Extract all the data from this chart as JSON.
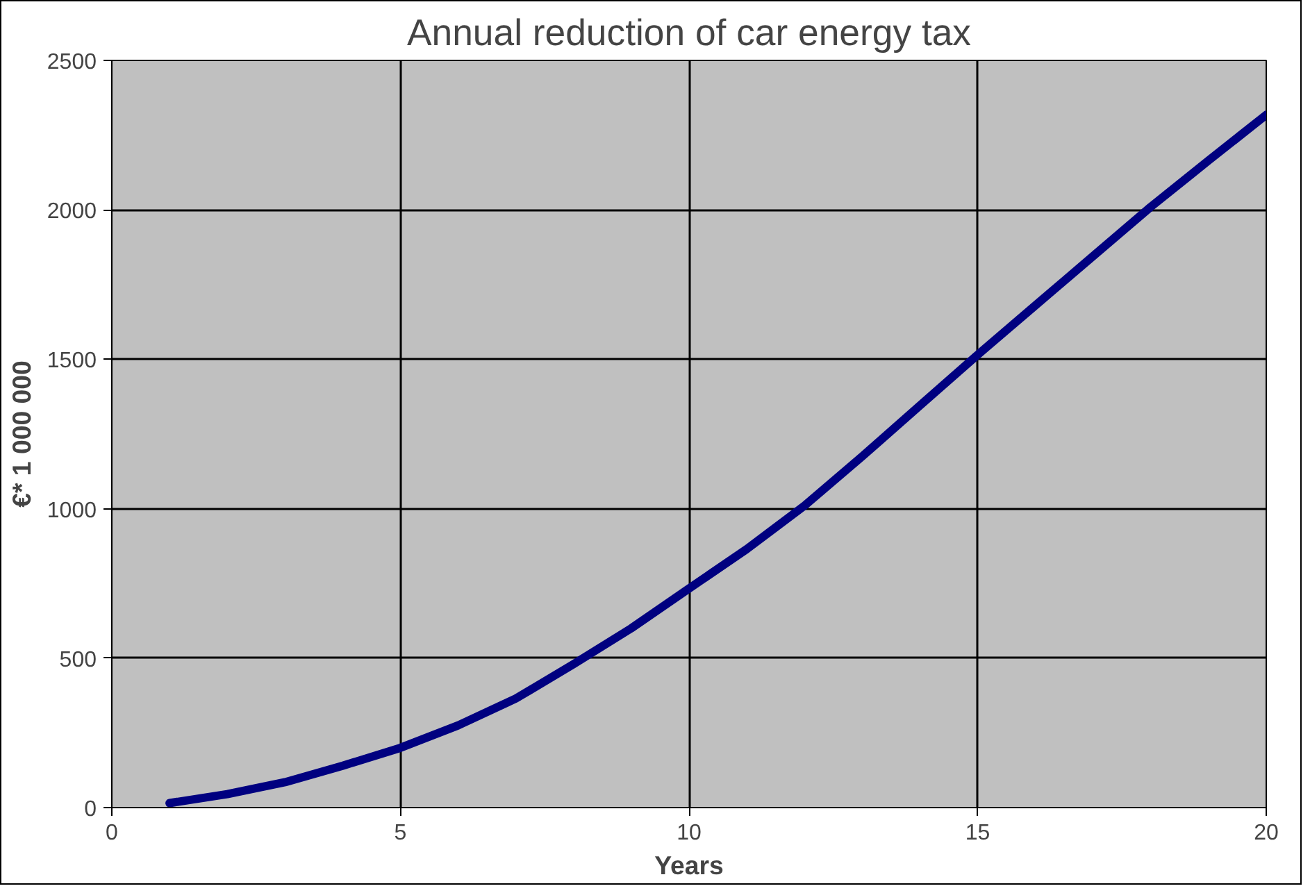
{
  "chart_data": {
    "type": "line",
    "title": "Annual reduction of car energy tax",
    "xlabel": "Years",
    "ylabel": "€* 1 000 000",
    "x": [
      1,
      2,
      3,
      4,
      5,
      6,
      7,
      8,
      9,
      10,
      11,
      12,
      13,
      14,
      15,
      16,
      17,
      18,
      19,
      20
    ],
    "series": [
      {
        "color": "#000080",
        "values": [
          15,
          45,
          85,
          140,
          200,
          275,
          365,
          480,
          600,
          733,
          865,
          1010,
          1175,
          1345,
          1515,
          1680,
          1845,
          2010,
          2165,
          2318
        ]
      }
    ],
    "xlim": [
      0,
      20
    ],
    "xticks": [
      0,
      5,
      10,
      15,
      20
    ],
    "ylim": [
      0,
      2500
    ],
    "yticks": [
      0,
      500,
      1000,
      1500,
      2000,
      2500
    ],
    "grid": true,
    "marker": "none",
    "line_style": "solid"
  }
}
